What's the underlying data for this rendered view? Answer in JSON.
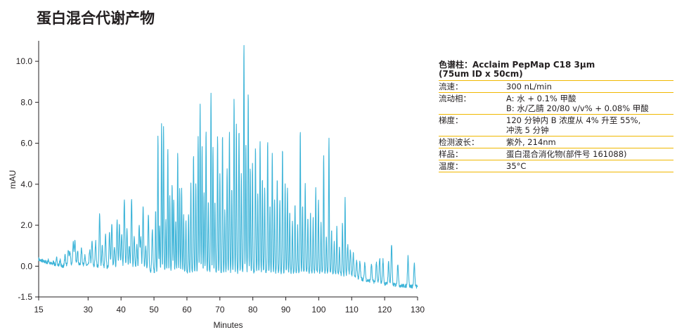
{
  "title": "蛋白混合代谢产物",
  "chart_data": {
    "type": "line",
    "xlabel": "Minutes",
    "ylabel": "mAU",
    "xlim": [
      15,
      130
    ],
    "ylim": [
      -1.5,
      11.0
    ],
    "x_ticks": [
      "15",
      "30",
      "40",
      "50",
      "60",
      "70",
      "80",
      "90",
      "100",
      "110",
      "120",
      "130"
    ],
    "x_tick_values": [
      15,
      30,
      40,
      50,
      60,
      70,
      80,
      90,
      100,
      110,
      120,
      130
    ],
    "y_ticks": [
      "-1.5",
      "0.0",
      "2.0",
      "4.0",
      "6.0",
      "8.0",
      "10.0"
    ],
    "y_tick_values": [
      -1.5,
      0,
      2,
      4,
      6,
      8,
      10
    ],
    "grid": false,
    "line_color": "#3db4d8",
    "axis_color": "#231f20",
    "series": [
      {
        "baseline": [
          [
            15,
            0.35
          ],
          [
            18,
            0.15
          ],
          [
            22,
            0.0
          ],
          [
            25,
            0.1
          ],
          [
            30,
            0.05
          ],
          [
            35,
            -0.05
          ],
          [
            40,
            -0.1
          ],
          [
            45,
            -0.2
          ],
          [
            50,
            -0.25
          ],
          [
            55,
            -0.3
          ],
          [
            60,
            -0.3
          ],
          [
            65,
            -0.3
          ],
          [
            70,
            -0.3
          ],
          [
            75,
            -0.3
          ],
          [
            80,
            -0.3
          ],
          [
            85,
            -0.3
          ],
          [
            90,
            -0.3
          ],
          [
            95,
            -0.3
          ],
          [
            100,
            -0.3
          ],
          [
            105,
            -0.35
          ],
          [
            110,
            -0.5
          ],
          [
            115,
            -0.7
          ],
          [
            120,
            -0.85
          ],
          [
            125,
            -0.95
          ],
          [
            130,
            -1.0
          ]
        ],
        "peaks": [
          [
            15.5,
            0.25
          ],
          [
            16.5,
            0.2
          ],
          [
            18,
            0.3
          ],
          [
            19.5,
            0.2
          ],
          [
            20.5,
            0.4
          ],
          [
            21.5,
            0.3
          ],
          [
            23,
            0.5
          ],
          [
            24,
            0.8
          ],
          [
            24.5,
            0.7
          ],
          [
            25.5,
            1.2
          ],
          [
            26,
            1.2
          ],
          [
            26.8,
            0.8
          ],
          [
            28,
            0.9
          ],
          [
            29,
            0.5
          ],
          [
            30.5,
            0.8
          ],
          [
            31.2,
            1.2
          ],
          [
            32.3,
            1.2
          ],
          [
            33.5,
            2.5
          ],
          [
            34.3,
            1.0
          ],
          [
            35.3,
            1.5
          ],
          [
            36.5,
            1.7
          ],
          [
            37.2,
            2.0
          ],
          [
            38,
            1.0
          ],
          [
            38.8,
            2.2
          ],
          [
            39.5,
            2.0
          ],
          [
            40.2,
            1.5
          ],
          [
            41,
            3.3
          ],
          [
            41.8,
            1.8
          ],
          [
            42.5,
            1.0
          ],
          [
            43.2,
            3.3
          ],
          [
            44,
            1.5
          ],
          [
            44.8,
            1.0
          ],
          [
            45.5,
            2.0
          ],
          [
            46,
            1.4
          ],
          [
            46.7,
            2.9
          ],
          [
            47.5,
            1.0
          ],
          [
            48.3,
            2.5
          ],
          [
            49.5,
            1.8
          ],
          [
            50.5,
            2.7
          ],
          [
            51.2,
            6.3
          ],
          [
            51.7,
            2.0
          ],
          [
            52.3,
            6.9
          ],
          [
            52.9,
            6.8
          ],
          [
            53.6,
            2.3
          ],
          [
            54.2,
            5.8
          ],
          [
            54.8,
            3.5
          ],
          [
            55.5,
            4.0
          ],
          [
            56,
            3.3
          ],
          [
            56.6,
            2.2
          ],
          [
            57.2,
            5.6
          ],
          [
            57.8,
            3.8
          ],
          [
            58.4,
            3.8
          ],
          [
            59,
            2.5
          ],
          [
            59.7,
            2.3
          ],
          [
            60.5,
            2.5
          ],
          [
            61.2,
            4.0
          ],
          [
            62,
            5.5
          ],
          [
            62.7,
            4.0
          ],
          [
            63.4,
            6.3
          ],
          [
            64,
            7.9
          ],
          [
            64.6,
            5.8
          ],
          [
            65.2,
            3.6
          ],
          [
            65.8,
            6.7
          ],
          [
            66.5,
            3.2
          ],
          [
            67.3,
            8.5
          ],
          [
            67.9,
            5.8
          ],
          [
            68.5,
            3.2
          ],
          [
            69.3,
            6.3
          ],
          [
            70,
            4.5
          ],
          [
            70.8,
            6.4
          ],
          [
            71.5,
            2.8
          ],
          [
            72.2,
            4.8
          ],
          [
            72.9,
            6.6
          ],
          [
            73.6,
            3.8
          ],
          [
            74.3,
            8.2
          ],
          [
            75,
            7.0
          ],
          [
            75.8,
            6.7
          ],
          [
            76.5,
            4.5
          ],
          [
            77.3,
            10.9
          ],
          [
            77.9,
            6.0
          ],
          [
            78.6,
            8.5
          ],
          [
            79.2,
            4.8
          ],
          [
            79.9,
            5.0
          ],
          [
            80.8,
            5.8
          ],
          [
            81.5,
            3.5
          ],
          [
            82.2,
            6.2
          ],
          [
            82.9,
            4.3
          ],
          [
            83.6,
            3.8
          ],
          [
            84.5,
            6.1
          ],
          [
            85.2,
            3.0
          ],
          [
            85.9,
            5.6
          ],
          [
            86.6,
            3.2
          ],
          [
            87.4,
            4.3
          ],
          [
            88.2,
            3.3
          ],
          [
            89,
            5.8
          ],
          [
            89.8,
            4.0
          ],
          [
            90.5,
            3.8
          ],
          [
            91.2,
            2.6
          ],
          [
            92,
            2.2
          ],
          [
            92.8,
            3.1
          ],
          [
            93.6,
            2.0
          ],
          [
            94.4,
            6.6
          ],
          [
            95.1,
            3.0
          ],
          [
            95.9,
            4.0
          ],
          [
            96.7,
            2.4
          ],
          [
            97.5,
            2.5
          ],
          [
            98.3,
            2.4
          ],
          [
            99.1,
            3.8
          ],
          [
            99.9,
            3.2
          ],
          [
            100.7,
            2.2
          ],
          [
            101.5,
            5.5
          ],
          [
            102.3,
            1.5
          ],
          [
            103.1,
            6.2
          ],
          [
            103.9,
            1.8
          ],
          [
            104.7,
            1.2
          ],
          [
            105.5,
            2.0
          ],
          [
            106.3,
            1.0
          ],
          [
            107.2,
            2.1
          ],
          [
            108,
            3.3
          ],
          [
            108.8,
            1.0
          ],
          [
            109.6,
            0.8
          ],
          [
            110.5,
            0.6
          ],
          [
            111.5,
            0.3
          ],
          [
            112.5,
            0.2
          ],
          [
            114,
            0.15
          ],
          [
            116,
            0.1
          ],
          [
            117.5,
            0.2
          ],
          [
            118.5,
            0.4
          ],
          [
            119.5,
            0.3
          ],
          [
            121.2,
            0.2
          ],
          [
            122.1,
            1.05
          ],
          [
            124,
            0.15
          ],
          [
            127.1,
            0.5
          ],
          [
            129,
            0.1
          ]
        ]
      }
    ]
  },
  "info": {
    "title_lines": [
      "色谱柱：Acclaim PepMap C18 3μm",
      "(75um ID x 50cm)"
    ],
    "rows": [
      {
        "label": "流速：",
        "values": [
          "300 nL/min"
        ]
      },
      {
        "label": "流动相：",
        "values": [
          "A: 水 + 0.1% 甲酸",
          "B: 水/乙腈 20/80 v/v% + 0.08% 甲酸"
        ]
      },
      {
        "label": "梯度：",
        "values": [
          "120 分钟内 B 浓度从 4% 升至 55%,",
          "冲洗 5 分钟"
        ]
      },
      {
        "label": "检测波长：",
        "values": [
          "紫外, 214nm"
        ]
      },
      {
        "label": "样品：",
        "values": [
          "蛋白混合消化物(部件号 161088)"
        ]
      },
      {
        "label": "温度：",
        "values": [
          "35°C"
        ]
      }
    ]
  }
}
